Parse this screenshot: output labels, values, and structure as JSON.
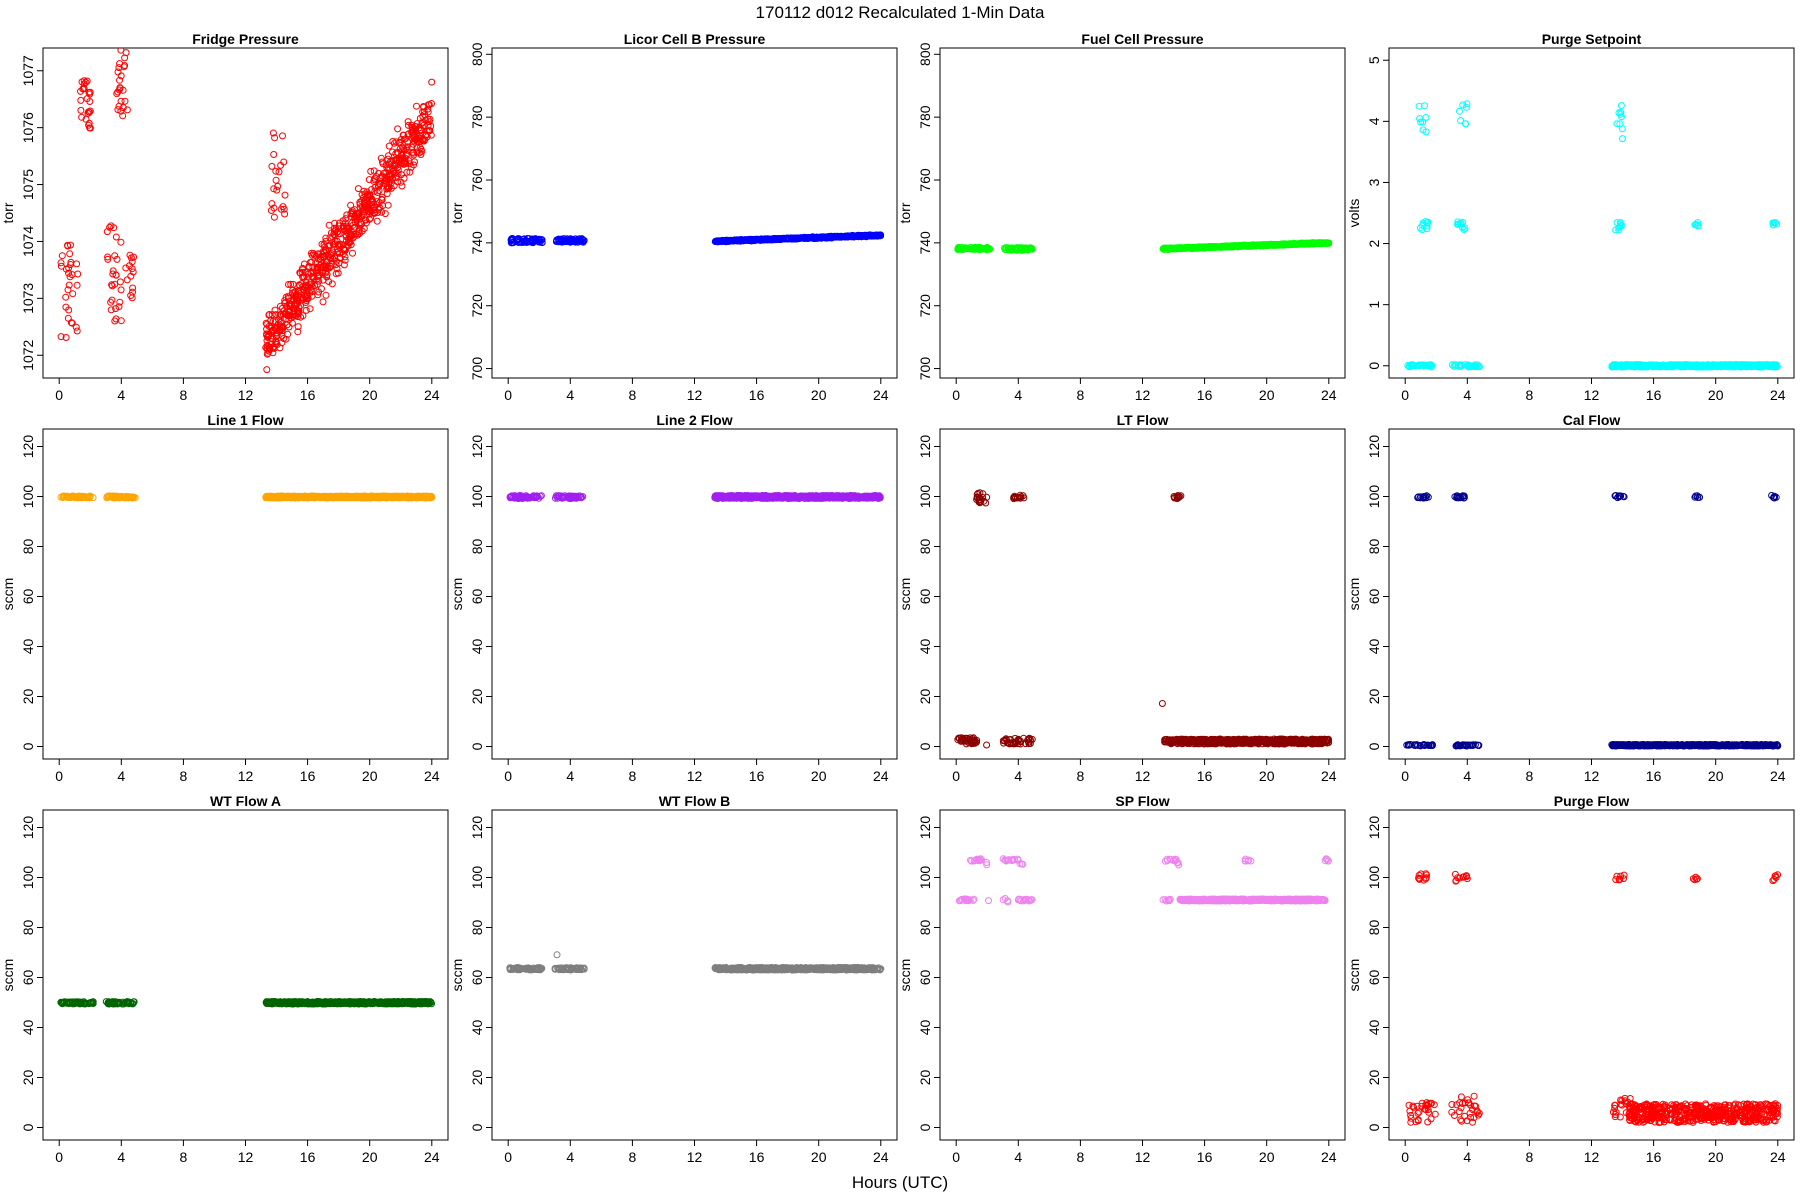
{
  "figure": {
    "title": "170112   d012   Recalculated 1-Min Data",
    "xlabel": "Hours (UTC)"
  },
  "chart_data": [
    {
      "type": "scatter",
      "title": "Fridge Pressure",
      "ylabel": "torr",
      "color": "#ff0000",
      "xlim": [
        0,
        24
      ],
      "ylim": [
        1071.6,
        1077.4
      ],
      "xticks": [
        0,
        4,
        8,
        12,
        16,
        20,
        24
      ],
      "yticks": [
        1072,
        1073,
        1074,
        1075,
        1076,
        1077
      ],
      "clusters": [
        {
          "x0": 0.1,
          "x1": 1.2,
          "y0": 1072.3,
          "y1": 1074.0,
          "n": 30
        },
        {
          "x0": 1.3,
          "x1": 2.1,
          "y0": 1075.9,
          "y1": 1076.9,
          "n": 26
        },
        {
          "x0": 3.0,
          "x1": 4.0,
          "y0": 1072.6,
          "y1": 1074.4,
          "n": 28
        },
        {
          "x0": 3.7,
          "x1": 4.4,
          "y0": 1076.2,
          "y1": 1077.4,
          "n": 24
        },
        {
          "x0": 4.2,
          "x1": 4.8,
          "y0": 1073.0,
          "y1": 1074.0,
          "n": 14
        },
        {
          "x0": 13.5,
          "x1": 14.6,
          "y0": 1074.3,
          "y1": 1076.1,
          "n": 22
        },
        {
          "x0": 13.3,
          "x1": 24.0,
          "y0": 1071.6,
          "y1": 1077.0,
          "n": 700,
          "trend": [
            [
              13.3,
              1072.2
            ],
            [
              24.0,
              1076.2
            ]
          ],
          "spread": 1.4
        }
      ]
    },
    {
      "type": "scatter",
      "title": "Licor Cell B Pressure",
      "ylabel": "torr",
      "color": "#0000ff",
      "xlim": [
        0,
        24
      ],
      "ylim": [
        697,
        802
      ],
      "xticks": [
        0,
        4,
        8,
        12,
        16,
        20,
        24
      ],
      "yticks": [
        700,
        720,
        740,
        760,
        780,
        800
      ],
      "clusters": [
        {
          "x0": 0.1,
          "x1": 2.2,
          "y0": 740.0,
          "y1": 741.4,
          "n": 70
        },
        {
          "x0": 3.1,
          "x1": 4.9,
          "y0": 740.2,
          "y1": 741.4,
          "n": 60
        },
        {
          "x0": 13.3,
          "x1": 24.0,
          "y0": 740.0,
          "y1": 743.0,
          "n": 660,
          "trend": [
            [
              13.3,
              740.5
            ],
            [
              24.0,
              742.4
            ]
          ],
          "spread": 0.7
        }
      ]
    },
    {
      "type": "scatter",
      "title": "Fuel Cell Pressure",
      "ylabel": "torr",
      "color": "#00ff00",
      "xlim": [
        0,
        24
      ],
      "ylim": [
        697,
        802
      ],
      "xticks": [
        0,
        4,
        8,
        12,
        16,
        20,
        24
      ],
      "yticks": [
        700,
        720,
        740,
        760,
        780,
        800
      ],
      "clusters": [
        {
          "x0": 0.1,
          "x1": 2.2,
          "y0": 737.8,
          "y1": 738.6,
          "n": 70
        },
        {
          "x0": 3.1,
          "x1": 4.9,
          "y0": 737.6,
          "y1": 738.5,
          "n": 60
        },
        {
          "x0": 13.3,
          "x1": 24.0,
          "y0": 737.5,
          "y1": 740.3,
          "n": 660,
          "trend": [
            [
              13.3,
              738.1
            ],
            [
              24.0,
              740.0
            ]
          ],
          "spread": 0.6
        }
      ]
    },
    {
      "type": "scatter",
      "title": "Purge Setpoint",
      "ylabel": "volts",
      "color": "#00ffff",
      "xlim": [
        0,
        24
      ],
      "ylim": [
        -0.2,
        5.2
      ],
      "xticks": [
        0,
        4,
        8,
        12,
        16,
        20,
        24
      ],
      "yticks": [
        0,
        1,
        2,
        3,
        4,
        5
      ],
      "clusters": [
        {
          "x0": 0.1,
          "x1": 1.8,
          "y0": -0.02,
          "y1": 0.02,
          "n": 30
        },
        {
          "x0": 3.0,
          "x1": 4.8,
          "y0": -0.02,
          "y1": 0.02,
          "n": 30
        },
        {
          "x0": 13.3,
          "x1": 24.0,
          "y0": -0.02,
          "y1": 0.02,
          "n": 520
        },
        {
          "x0": 0.9,
          "x1": 1.5,
          "y0": 2.22,
          "y1": 2.36,
          "n": 10
        },
        {
          "x0": 3.2,
          "x1": 3.9,
          "y0": 2.22,
          "y1": 2.36,
          "n": 10
        },
        {
          "x0": 13.5,
          "x1": 14.0,
          "y0": 2.22,
          "y1": 2.36,
          "n": 9
        },
        {
          "x0": 18.6,
          "x1": 18.9,
          "y0": 2.25,
          "y1": 2.35,
          "n": 5
        },
        {
          "x0": 23.6,
          "x1": 24.0,
          "y0": 2.25,
          "y1": 2.38,
          "n": 6
        },
        {
          "x0": 0.8,
          "x1": 1.4,
          "y0": 3.8,
          "y1": 4.3,
          "n": 8
        },
        {
          "x0": 3.3,
          "x1": 4.0,
          "y0": 3.9,
          "y1": 4.3,
          "n": 7
        },
        {
          "x0": 13.5,
          "x1": 14.0,
          "y0": 3.7,
          "y1": 4.3,
          "n": 9
        }
      ]
    },
    {
      "type": "scatter",
      "title": "Line 1 Flow",
      "ylabel": "sccm",
      "color": "#ffa500",
      "xlim": [
        0,
        24
      ],
      "ylim": [
        -5,
        127
      ],
      "xticks": [
        0,
        4,
        8,
        12,
        16,
        20,
        24
      ],
      "yticks": [
        0,
        20,
        40,
        60,
        80,
        100,
        120
      ],
      "clusters": [
        {
          "x0": 0.1,
          "x1": 2.2,
          "y0": 99.4,
          "y1": 100.2,
          "n": 60
        },
        {
          "x0": 3.0,
          "x1": 4.9,
          "y0": 99.4,
          "y1": 100.2,
          "n": 55
        },
        {
          "x0": 13.3,
          "x1": 24.0,
          "y0": 99.4,
          "y1": 100.2,
          "n": 600
        }
      ]
    },
    {
      "type": "scatter",
      "title": "Line 2 Flow",
      "ylabel": "sccm",
      "color": "#a020f0",
      "xlim": [
        0,
        24
      ],
      "ylim": [
        -5,
        127
      ],
      "xticks": [
        0,
        4,
        8,
        12,
        16,
        20,
        24
      ],
      "yticks": [
        0,
        20,
        40,
        60,
        80,
        100,
        120
      ],
      "clusters": [
        {
          "x0": 0.1,
          "x1": 2.2,
          "y0": 99.2,
          "y1": 100.4,
          "n": 60
        },
        {
          "x0": 3.0,
          "x1": 4.9,
          "y0": 99.2,
          "y1": 100.4,
          "n": 55
        },
        {
          "x0": 13.3,
          "x1": 24.0,
          "y0": 99.2,
          "y1": 100.4,
          "n": 600
        }
      ]
    },
    {
      "type": "scatter",
      "title": "LT Flow",
      "ylabel": "sccm",
      "color": "#8b0000",
      "xlim": [
        0,
        24
      ],
      "ylim": [
        -5,
        127
      ],
      "xticks": [
        0,
        4,
        8,
        12,
        16,
        20,
        24
      ],
      "yticks": [
        0,
        20,
        40,
        60,
        80,
        100,
        120
      ],
      "clusters": [
        {
          "x0": 0.1,
          "x1": 1.4,
          "y0": 1.0,
          "y1": 3.5,
          "n": 40
        },
        {
          "x0": 1.3,
          "x1": 2.0,
          "y0": 97.0,
          "y1": 101.5,
          "n": 18
        },
        {
          "x0": 1.9,
          "x1": 2.0,
          "y0": 0.5,
          "y1": 1.0,
          "n": 1
        },
        {
          "x0": 3.0,
          "x1": 4.9,
          "y0": 1.0,
          "y1": 3.5,
          "n": 40
        },
        {
          "x0": 3.7,
          "x1": 4.4,
          "y0": 99.0,
          "y1": 100.5,
          "n": 14
        },
        {
          "x0": 13.2,
          "x1": 13.3,
          "y0": 16.5,
          "y1": 17.5,
          "n": 1
        },
        {
          "x0": 14.0,
          "x1": 14.5,
          "y0": 99.0,
          "y1": 100.5,
          "n": 10
        },
        {
          "x0": 13.4,
          "x1": 24.0,
          "y0": 1.0,
          "y1": 3.0,
          "n": 600
        }
      ]
    },
    {
      "type": "scatter",
      "title": "Cal Flow",
      "ylabel": "sccm",
      "color": "#00008b",
      "xlim": [
        0,
        24
      ],
      "ylim": [
        -5,
        127
      ],
      "xticks": [
        0,
        4,
        8,
        12,
        16,
        20,
        24
      ],
      "yticks": [
        0,
        20,
        40,
        60,
        80,
        100,
        120
      ],
      "clusters": [
        {
          "x0": 0.1,
          "x1": 1.8,
          "y0": 0.2,
          "y1": 0.8,
          "n": 25
        },
        {
          "x0": 0.8,
          "x1": 1.7,
          "y0": 99.4,
          "y1": 100.4,
          "n": 14
        },
        {
          "x0": 3.0,
          "x1": 4.8,
          "y0": 0.2,
          "y1": 0.8,
          "n": 25
        },
        {
          "x0": 3.2,
          "x1": 4.1,
          "y0": 99.4,
          "y1": 100.4,
          "n": 14
        },
        {
          "x0": 13.3,
          "x1": 24.0,
          "y0": 0.2,
          "y1": 0.8,
          "n": 560
        },
        {
          "x0": 13.5,
          "x1": 14.1,
          "y0": 99.4,
          "y1": 100.4,
          "n": 10
        },
        {
          "x0": 18.6,
          "x1": 19.0,
          "y0": 99.4,
          "y1": 100.4,
          "n": 6
        },
        {
          "x0": 23.6,
          "x1": 24.0,
          "y0": 99.4,
          "y1": 100.4,
          "n": 6
        }
      ]
    },
    {
      "type": "scatter",
      "title": "WT Flow A",
      "ylabel": "sccm",
      "color": "#006400",
      "xlim": [
        0,
        24
      ],
      "ylim": [
        -5,
        127
      ],
      "xticks": [
        0,
        4,
        8,
        12,
        16,
        20,
        24
      ],
      "yticks": [
        0,
        20,
        40,
        60,
        80,
        100,
        120
      ],
      "clusters": [
        {
          "x0": 0.1,
          "x1": 2.2,
          "y0": 49.4,
          "y1": 50.4,
          "n": 60
        },
        {
          "x0": 3.0,
          "x1": 4.9,
          "y0": 49.4,
          "y1": 50.4,
          "n": 55
        },
        {
          "x0": 13.3,
          "x1": 24.0,
          "y0": 49.4,
          "y1": 50.4,
          "n": 600
        }
      ]
    },
    {
      "type": "scatter",
      "title": "WT Flow B",
      "ylabel": "sccm",
      "color": "#7f7f7f",
      "xlim": [
        0,
        24
      ],
      "ylim": [
        -5,
        127
      ],
      "xticks": [
        0,
        4,
        8,
        12,
        16,
        20,
        24
      ],
      "yticks": [
        0,
        20,
        40,
        60,
        80,
        100,
        120
      ],
      "clusters": [
        {
          "x0": 0.1,
          "x1": 2.2,
          "y0": 63.0,
          "y1": 64.0,
          "n": 60
        },
        {
          "x0": 3.0,
          "x1": 4.9,
          "y0": 63.0,
          "y1": 64.0,
          "n": 55
        },
        {
          "x0": 3.1,
          "x1": 3.2,
          "y0": 68.8,
          "y1": 69.2,
          "n": 1
        },
        {
          "x0": 13.3,
          "x1": 24.0,
          "y0": 63.0,
          "y1": 64.0,
          "n": 600
        }
      ]
    },
    {
      "type": "scatter",
      "title": "SP Flow",
      "ylabel": "sccm",
      "color": "#ee82ee",
      "xlim": [
        0,
        24
      ],
      "ylim": [
        -5,
        127
      ],
      "xticks": [
        0,
        4,
        8,
        12,
        16,
        20,
        24
      ],
      "yticks": [
        0,
        20,
        40,
        60,
        80,
        100,
        120
      ],
      "clusters": [
        {
          "x0": 0.1,
          "x1": 1.2,
          "y0": 90.6,
          "y1": 91.4,
          "n": 20
        },
        {
          "x0": 0.9,
          "x1": 1.9,
          "y0": 106.5,
          "y1": 107.5,
          "n": 14
        },
        {
          "x0": 1.8,
          "x1": 2.0,
          "y0": 104.5,
          "y1": 106.0,
          "n": 2
        },
        {
          "x0": 1.9,
          "x1": 2.1,
          "y0": 90.6,
          "y1": 91.4,
          "n": 1
        },
        {
          "x0": 3.0,
          "x1": 4.0,
          "y0": 106.5,
          "y1": 107.5,
          "n": 14
        },
        {
          "x0": 3.9,
          "x1": 4.4,
          "y0": 104.5,
          "y1": 106.0,
          "n": 3
        },
        {
          "x0": 3.0,
          "x1": 3.4,
          "y0": 90.0,
          "y1": 92.5,
          "n": 4
        },
        {
          "x0": 4.0,
          "x1": 4.9,
          "y0": 90.6,
          "y1": 91.4,
          "n": 16
        },
        {
          "x0": 13.4,
          "x1": 14.2,
          "y0": 106.5,
          "y1": 107.5,
          "n": 10
        },
        {
          "x0": 14.2,
          "x1": 14.5,
          "y0": 104.5,
          "y1": 106.0,
          "n": 3
        },
        {
          "x0": 18.6,
          "x1": 19.0,
          "y0": 106.5,
          "y1": 107.5,
          "n": 6
        },
        {
          "x0": 23.5,
          "x1": 24.0,
          "y0": 106.5,
          "y1": 107.5,
          "n": 6
        },
        {
          "x0": 13.3,
          "x1": 13.9,
          "y0": 90.6,
          "y1": 91.4,
          "n": 8
        },
        {
          "x0": 14.4,
          "x1": 23.8,
          "y0": 90.6,
          "y1": 91.4,
          "n": 520
        }
      ]
    },
    {
      "type": "scatter",
      "title": "Purge Flow",
      "ylabel": "sccm",
      "color": "#ff0000",
      "xlim": [
        0,
        24
      ],
      "ylim": [
        -5,
        127
      ],
      "xticks": [
        0,
        4,
        8,
        12,
        16,
        20,
        24
      ],
      "yticks": [
        0,
        20,
        40,
        60,
        80,
        100,
        120
      ],
      "clusters": [
        {
          "x0": 0.1,
          "x1": 2.0,
          "y0": 2.0,
          "y1": 10.0,
          "n": 30
        },
        {
          "x0": 0.8,
          "x1": 1.4,
          "y0": 98.5,
          "y1": 101.5,
          "n": 10
        },
        {
          "x0": 3.0,
          "x1": 4.8,
          "y0": 2.0,
          "y1": 13.0,
          "n": 30
        },
        {
          "x0": 3.2,
          "x1": 4.0,
          "y0": 98.5,
          "y1": 101.5,
          "n": 10
        },
        {
          "x0": 13.3,
          "x1": 14.6,
          "y0": 4.0,
          "y1": 12.0,
          "n": 20
        },
        {
          "x0": 13.5,
          "x1": 14.1,
          "y0": 98.5,
          "y1": 101.5,
          "n": 8
        },
        {
          "x0": 18.5,
          "x1": 19.0,
          "y0": 99.0,
          "y1": 100.5,
          "n": 5
        },
        {
          "x0": 23.6,
          "x1": 24.0,
          "y0": 98.5,
          "y1": 101.5,
          "n": 6
        },
        {
          "x0": 14.4,
          "x1": 24.0,
          "y0": 2.0,
          "y1": 9.5,
          "n": 500
        }
      ]
    }
  ]
}
